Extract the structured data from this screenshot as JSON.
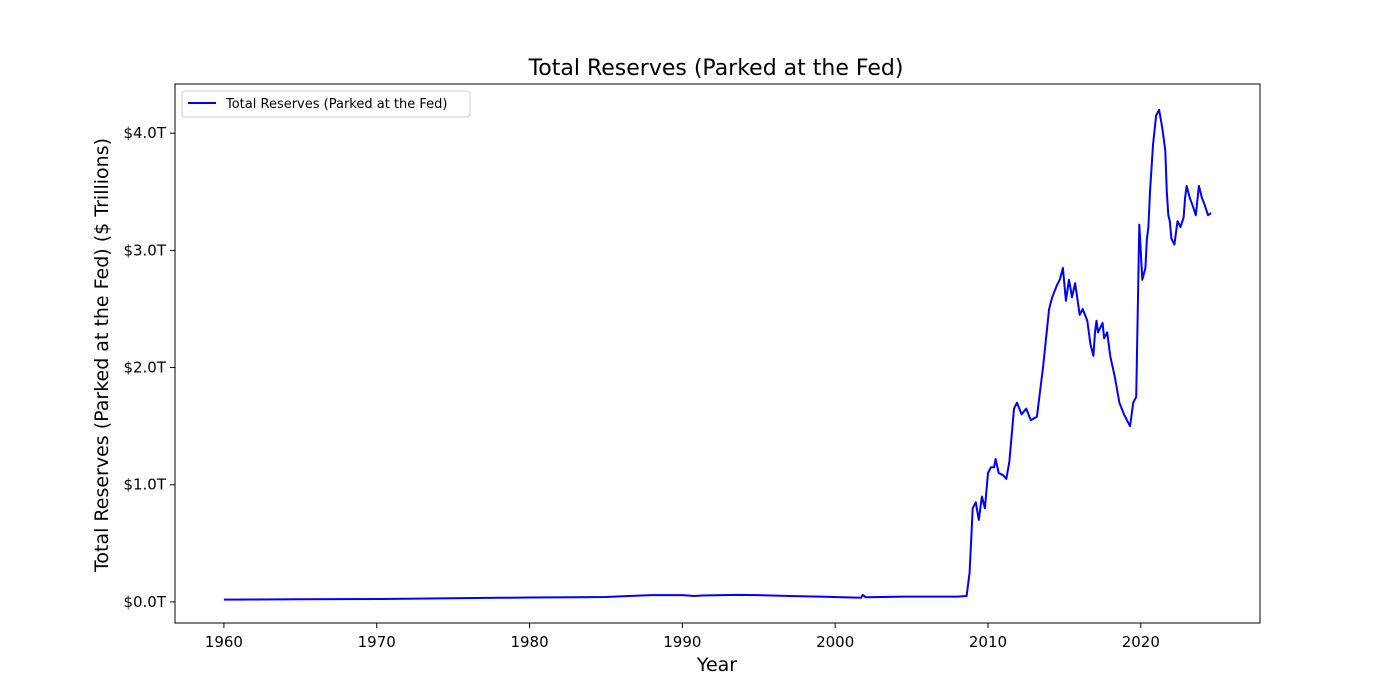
{
  "chart_data": {
    "type": "line",
    "title": "Total Reserves (Parked at the Fed)",
    "xlabel": "Year",
    "ylabel": "Total Reserves (Parked at the Fed) ($ Trillions)",
    "xlim": [
      1956.8,
      2027.8
    ],
    "ylim": [
      -0.18,
      4.42
    ],
    "x_ticks": [
      1960,
      1970,
      1980,
      1990,
      2000,
      2010,
      2020
    ],
    "x_tick_labels": [
      "1960",
      "1970",
      "1980",
      "1990",
      "2000",
      "2010",
      "2020"
    ],
    "y_ticks": [
      0,
      1,
      2,
      3,
      4
    ],
    "y_tick_labels": [
      "$0.0T",
      "$1.0T",
      "$2.0T",
      "$3.0T",
      "$4.0T"
    ],
    "grid": false,
    "legend_position": "upper-left",
    "line_color": "#0000ff",
    "series": [
      {
        "name": "Total Reserves (Parked at the Fed)",
        "x": [
          1960.0,
          1965.0,
          1970.0,
          1975.0,
          1978.0,
          1980.0,
          1983.0,
          1985.0,
          1986.5,
          1988.0,
          1990.0,
          1990.8,
          1991.3,
          1993.5,
          1995.0,
          1997.0,
          1999.0,
          2000.5,
          2001.7,
          2001.8,
          2002.0,
          2004.5,
          2006.0,
          2008.0,
          2008.6,
          2008.8,
          2009.0,
          2009.2,
          2009.4,
          2009.6,
          2009.8,
          2010.0,
          2010.2,
          2010.4,
          2010.5,
          2010.7,
          2011.0,
          2011.2,
          2011.4,
          2011.7,
          2011.9,
          2012.2,
          2012.5,
          2012.8,
          2013.2,
          2013.6,
          2014.0,
          2014.2,
          2014.5,
          2014.7,
          2014.9,
          2015.1,
          2015.3,
          2015.5,
          2015.7,
          2016.0,
          2016.2,
          2016.5,
          2016.7,
          2016.9,
          2017.0,
          2017.1,
          2017.2,
          2017.5,
          2017.6,
          2017.8,
          2018.0,
          2018.3,
          2018.6,
          2018.9,
          2019.1,
          2019.3,
          2019.5,
          2019.7,
          2019.9,
          2020.1,
          2020.3,
          2020.4,
          2020.5,
          2020.6,
          2020.8,
          2021.0,
          2021.2,
          2021.4,
          2021.6,
          2021.7,
          2021.8,
          2021.9,
          2022.0,
          2022.2,
          2022.4,
          2022.6,
          2022.8,
          2022.9,
          2023.0,
          2023.2,
          2023.4,
          2023.6,
          2023.8,
          2024.0,
          2024.2,
          2024.4,
          2024.6
        ],
        "y": [
          0.02,
          0.022,
          0.025,
          0.032,
          0.035,
          0.038,
          0.04,
          0.042,
          0.05,
          0.058,
          0.058,
          0.05,
          0.055,
          0.06,
          0.058,
          0.05,
          0.045,
          0.04,
          0.035,
          0.06,
          0.04,
          0.045,
          0.045,
          0.045,
          0.05,
          0.25,
          0.8,
          0.85,
          0.7,
          0.9,
          0.8,
          1.1,
          1.15,
          1.15,
          1.22,
          1.1,
          1.08,
          1.05,
          1.2,
          1.65,
          1.7,
          1.6,
          1.65,
          1.55,
          1.58,
          2.0,
          2.5,
          2.6,
          2.7,
          2.75,
          2.85,
          2.57,
          2.75,
          2.6,
          2.72,
          2.45,
          2.5,
          2.4,
          2.2,
          2.1,
          2.3,
          2.4,
          2.3,
          2.38,
          2.25,
          2.3,
          2.1,
          1.92,
          1.7,
          1.6,
          1.55,
          1.5,
          1.7,
          1.75,
          3.22,
          2.75,
          2.85,
          3.1,
          3.2,
          3.5,
          3.9,
          4.15,
          4.2,
          4.05,
          3.85,
          3.5,
          3.3,
          3.25,
          3.1,
          3.05,
          3.25,
          3.2,
          3.28,
          3.45,
          3.55,
          3.45,
          3.38,
          3.3,
          3.55,
          3.45,
          3.38,
          3.3,
          3.32
        ]
      }
    ]
  }
}
